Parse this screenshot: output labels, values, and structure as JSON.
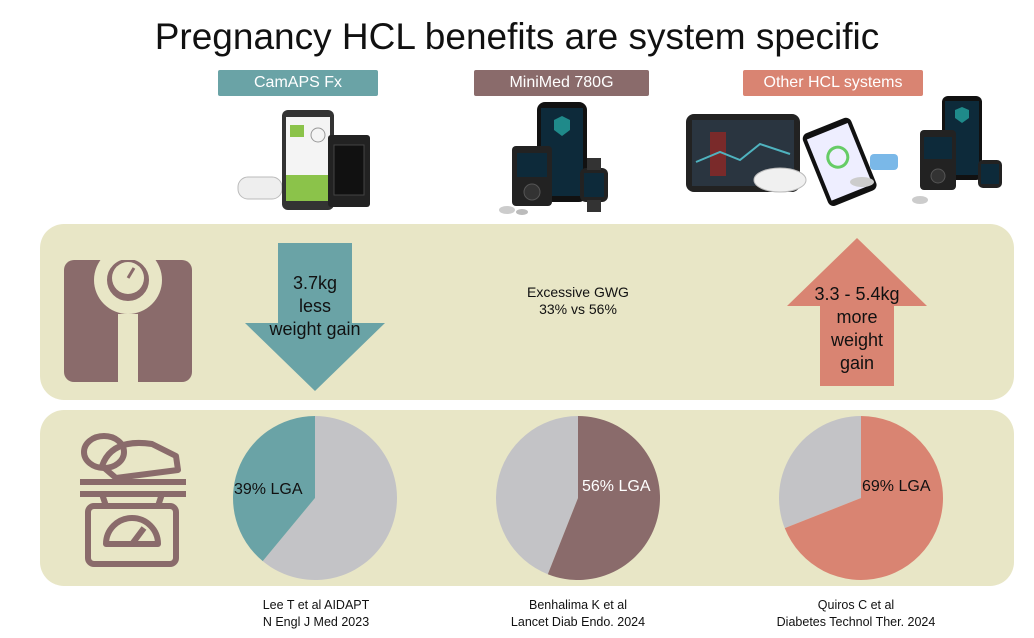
{
  "title": "Pregnancy HCL benefits are system specific",
  "systems": [
    {
      "label": "CamAPS Fx",
      "color": "#6aa3a6"
    },
    {
      "label": "MiniMed 780G",
      "color": "#8a6b6b"
    },
    {
      "label": "Other HCL systems",
      "color": "#d98472"
    }
  ],
  "weight_row": {
    "camaps_arrow": "3.7kg less weight gain",
    "camaps_lines": [
      "3.7kg",
      "less",
      "weight gain"
    ],
    "minimed_text_line1": "Excessive GWG",
    "minimed_text_line2": "33% vs 56%",
    "other_lines": [
      "3.3 - 5.4kg",
      "more",
      "weight",
      "gain"
    ]
  },
  "lga_row": {
    "pies": [
      {
        "label": "39% LGA",
        "value": 39,
        "color": "#6aa3a6",
        "rest_color": "#c3c3c6"
      },
      {
        "label": "56% LGA",
        "value": 56,
        "color": "#8a6b6b",
        "rest_color": "#c3c3c6"
      },
      {
        "label": "69% LGA",
        "value": 69,
        "color": "#d98472",
        "rest_color": "#c3c3c6"
      }
    ]
  },
  "citations": [
    {
      "line1": "Lee T et al AIDAPT",
      "line2": "N Engl J Med 2023"
    },
    {
      "line1": "Benhalima K et al",
      "line2": "Lancet Diab Endo. 2024"
    },
    {
      "line1": "Quiros C et al",
      "line2": "Diabetes Technol Ther. 2024"
    }
  ],
  "icons": {
    "weight_icon": "bathroom-scale-icon",
    "lga_icon": "baby-scale-icon",
    "icon_color": "#8a6b6b"
  }
}
